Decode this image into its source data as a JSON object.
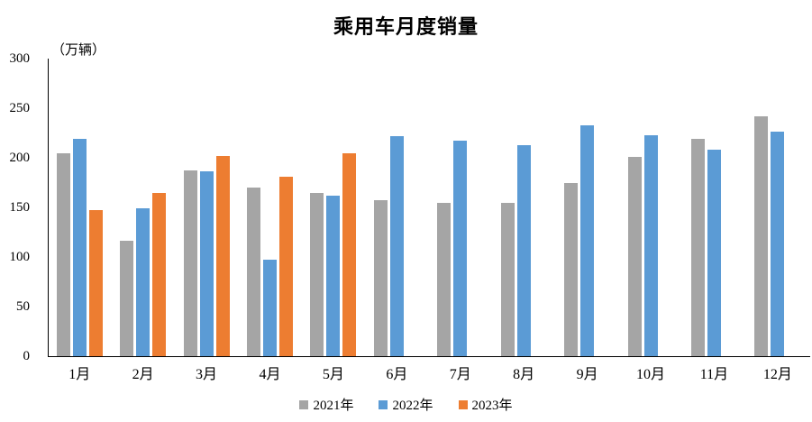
{
  "chart_data": {
    "type": "bar",
    "title": "乘用车月度销量",
    "unit_label": "（万辆）",
    "categories": [
      "1月",
      "2月",
      "3月",
      "4月",
      "5月",
      "6月",
      "7月",
      "8月",
      "9月",
      "10月",
      "11月",
      "12月"
    ],
    "series": [
      {
        "name": "2021年",
        "color": "#A5A5A5",
        "values": [
          205,
          116,
          187,
          170,
          165,
          157,
          155,
          155,
          175,
          201,
          219,
          242
        ]
      },
      {
        "name": "2022年",
        "color": "#5B9BD5",
        "values": [
          219,
          149,
          186,
          97,
          162,
          222,
          217,
          213,
          233,
          223,
          208,
          226
        ]
      },
      {
        "name": "2023年",
        "color": "#ED7D31",
        "values": [
          147,
          165,
          202,
          181,
          205,
          null,
          null,
          null,
          null,
          null,
          null,
          null
        ]
      }
    ],
    "ylim": [
      0,
      300
    ],
    "yticks": [
      0,
      50,
      100,
      150,
      200,
      250,
      300
    ],
    "grid": false,
    "legend_position": "bottom",
    "axis_color": "#000000",
    "background_color": "#ffffff"
  }
}
